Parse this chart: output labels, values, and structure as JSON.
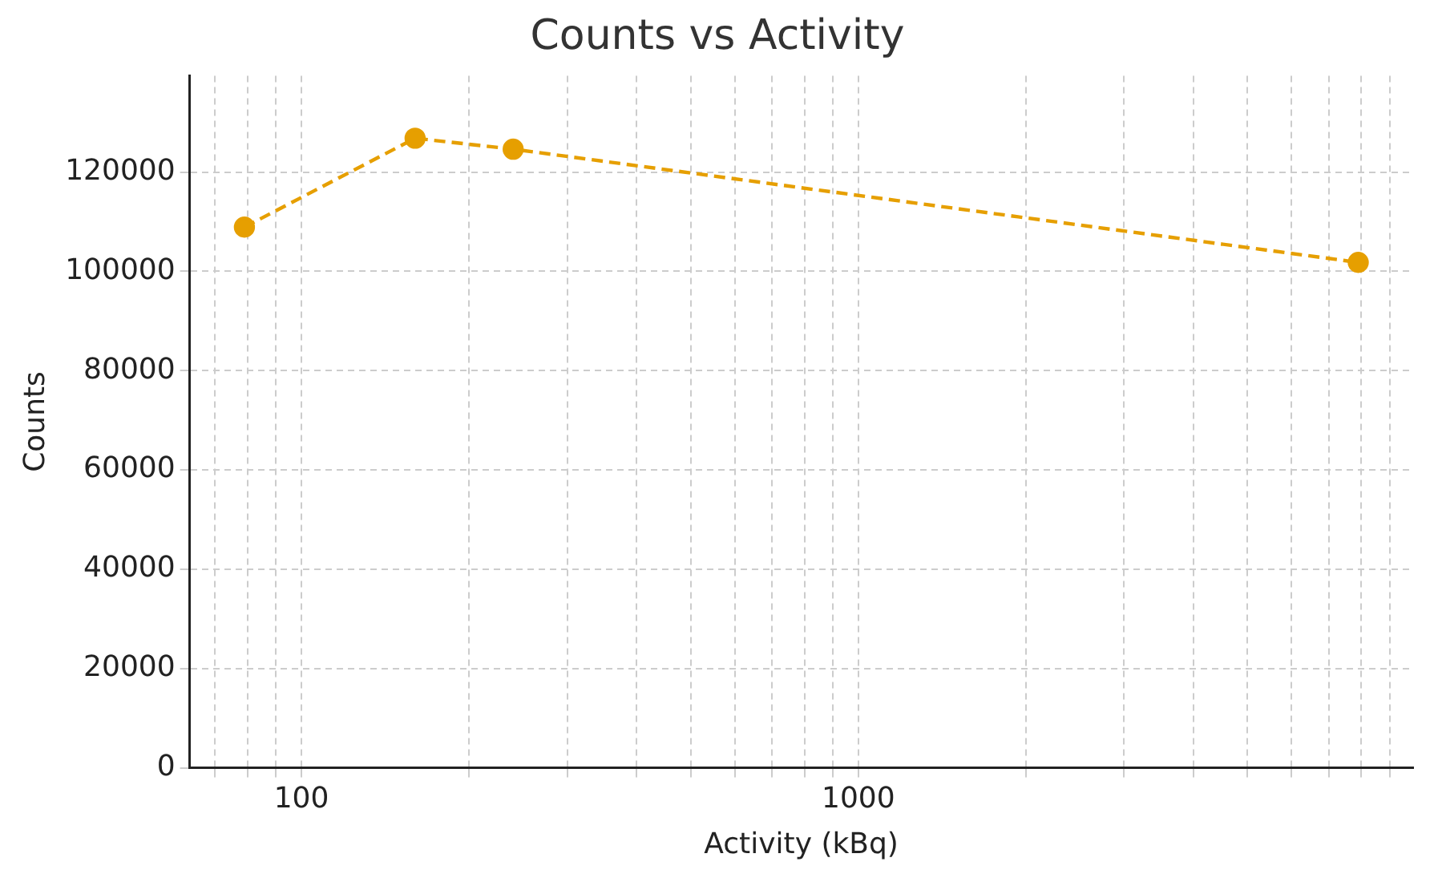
{
  "chart_data": {
    "type": "line",
    "title": "Counts vs Activity",
    "xlabel": "Activity (kBq)",
    "ylabel": "Counts",
    "x": [
      79,
      160,
      240,
      7900
    ],
    "series": [
      {
        "color": "#e69f00",
        "values": [
          108900,
          126800,
          124600,
          101800
        ]
      }
    ],
    "log": "x",
    "xlim": [
      63,
      9900
    ],
    "xticks": [
      {
        "value": 70,
        "label": null
      },
      {
        "value": 80,
        "label": null
      },
      {
        "value": 90,
        "label": null
      },
      100,
      {
        "value": 200,
        "label": null
      },
      {
        "value": 300,
        "label": null
      },
      {
        "value": 400,
        "label": null
      },
      {
        "value": 500,
        "label": null
      },
      {
        "value": 600,
        "label": null
      },
      {
        "value": 700,
        "label": null
      },
      {
        "value": 800,
        "label": null
      },
      {
        "value": 900,
        "label": null
      },
      1000,
      {
        "value": 2000,
        "label": null
      },
      {
        "value": 3000,
        "label": null
      },
      {
        "value": 4000,
        "label": null
      },
      {
        "value": 5000,
        "label": null
      },
      {
        "value": 6000,
        "label": null
      },
      {
        "value": 7000,
        "label": null
      },
      {
        "value": 8000,
        "label": null
      },
      {
        "value": 9000,
        "label": null
      }
    ],
    "ylim": [
      0,
      139400
    ],
    "yticks": [
      0,
      20000,
      40000,
      60000,
      80000,
      100000,
      120000
    ],
    "grid": true,
    "legend": false,
    "marker": "circle",
    "line_style": "dashed"
  }
}
